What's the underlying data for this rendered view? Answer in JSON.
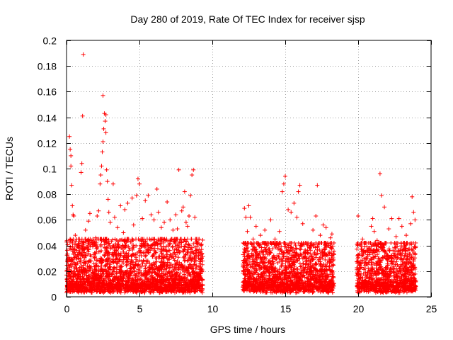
{
  "chart_data": {
    "type": "scatter",
    "title": "Day 280 of 2019, Rate Of TEC Index for receiver sjsp",
    "xlabel": "GPS time / hours",
    "ylabel": "ROTI / TECUs",
    "xlim": [
      0,
      25
    ],
    "ylim": [
      0,
      0.2
    ],
    "xticks": [
      0,
      5,
      10,
      15,
      20,
      25
    ],
    "xtick_labels": [
      "0",
      "5",
      "10",
      "15",
      "20",
      "25"
    ],
    "yticks": [
      0,
      0.02,
      0.04,
      0.06,
      0.08,
      0.1,
      0.12,
      0.14,
      0.16,
      0.18,
      0.2
    ],
    "ytick_labels": [
      "0",
      "0.02",
      "0.04",
      "0.06",
      "0.08",
      "0.1",
      "0.12",
      "0.14",
      "0.16",
      "0.18",
      "0.2"
    ],
    "grid": true,
    "marker": "+",
    "color": "#ff0000",
    "series": [
      {
        "name": "ROTI",
        "points": [
          [
            0.1,
            0.03
          ],
          [
            0.2,
            0.125
          ],
          [
            0.25,
            0.115
          ],
          [
            0.3,
            0.11
          ],
          [
            0.3,
            0.102
          ],
          [
            0.35,
            0.087
          ],
          [
            0.4,
            0.071
          ],
          [
            0.45,
            0.064
          ],
          [
            0.5,
            0.063
          ],
          [
            0.6,
            0.048
          ],
          [
            0.8,
            0.041
          ],
          [
            0.9,
            0.035
          ],
          [
            1.0,
            0.097
          ],
          [
            1.05,
            0.104
          ],
          [
            1.1,
            0.141
          ],
          [
            1.15,
            0.189
          ],
          [
            1.3,
            0.052
          ],
          [
            1.5,
            0.059
          ],
          [
            1.6,
            0.065
          ],
          [
            1.8,
            0.039
          ],
          [
            2.0,
            0.046
          ],
          [
            2.1,
            0.063
          ],
          [
            2.2,
            0.067
          ],
          [
            2.3,
            0.088
          ],
          [
            2.35,
            0.095
          ],
          [
            2.4,
            0.102
          ],
          [
            2.45,
            0.113
          ],
          [
            2.5,
            0.121
          ],
          [
            2.5,
            0.157
          ],
          [
            2.55,
            0.131
          ],
          [
            2.6,
            0.143
          ],
          [
            2.65,
            0.137
          ],
          [
            2.7,
            0.128
          ],
          [
            2.7,
            0.142
          ],
          [
            2.75,
            0.099
          ],
          [
            2.8,
            0.09
          ],
          [
            2.85,
            0.076
          ],
          [
            2.9,
            0.066
          ],
          [
            3.0,
            0.058
          ],
          [
            3.2,
            0.088
          ],
          [
            3.3,
            0.062
          ],
          [
            3.5,
            0.054
          ],
          [
            3.7,
            0.071
          ],
          [
            3.9,
            0.05
          ],
          [
            4.0,
            0.068
          ],
          [
            4.2,
            0.073
          ],
          [
            4.5,
            0.077
          ],
          [
            4.6,
            0.056
          ],
          [
            4.8,
            0.079
          ],
          [
            4.9,
            0.092
          ],
          [
            5.0,
            0.088
          ],
          [
            5.2,
            0.061
          ],
          [
            5.4,
            0.075
          ],
          [
            5.6,
            0.079
          ],
          [
            5.8,
            0.064
          ],
          [
            6.0,
            0.06
          ],
          [
            6.2,
            0.084
          ],
          [
            6.3,
            0.066
          ],
          [
            6.5,
            0.054
          ],
          [
            6.7,
            0.058
          ],
          [
            6.9,
            0.074
          ],
          [
            7.1,
            0.06
          ],
          [
            7.3,
            0.052
          ],
          [
            7.5,
            0.064
          ],
          [
            7.6,
            0.053
          ],
          [
            7.7,
            0.099
          ],
          [
            7.9,
            0.067
          ],
          [
            8.0,
            0.07
          ],
          [
            8.1,
            0.082
          ],
          [
            8.2,
            0.058
          ],
          [
            8.3,
            0.055
          ],
          [
            8.4,
            0.063
          ],
          [
            8.5,
            0.079
          ],
          [
            8.6,
            0.095
          ],
          [
            8.7,
            0.099
          ],
          [
            8.8,
            0.062
          ],
          [
            9.0,
            0.042
          ],
          [
            9.2,
            0.035
          ],
          [
            12.2,
            0.069
          ],
          [
            12.3,
            0.062
          ],
          [
            12.4,
            0.051
          ],
          [
            12.5,
            0.071
          ],
          [
            12.6,
            0.062
          ],
          [
            12.8,
            0.045
          ],
          [
            13.0,
            0.055
          ],
          [
            13.3,
            0.048
          ],
          [
            13.6,
            0.052
          ],
          [
            14.0,
            0.06
          ],
          [
            14.3,
            0.045
          ],
          [
            14.6,
            0.051
          ],
          [
            14.8,
            0.082
          ],
          [
            14.9,
            0.088
          ],
          [
            15.0,
            0.094
          ],
          [
            15.2,
            0.068
          ],
          [
            15.4,
            0.066
          ],
          [
            15.6,
            0.073
          ],
          [
            15.8,
            0.062
          ],
          [
            15.9,
            0.082
          ],
          [
            16.0,
            0.087
          ],
          [
            16.2,
            0.057
          ],
          [
            16.5,
            0.041
          ],
          [
            16.9,
            0.052
          ],
          [
            17.1,
            0.063
          ],
          [
            17.2,
            0.087
          ],
          [
            17.4,
            0.048
          ],
          [
            17.6,
            0.056
          ],
          [
            17.8,
            0.054
          ],
          [
            18.1,
            0.046
          ],
          [
            18.2,
            0.049
          ],
          [
            20.0,
            0.063
          ],
          [
            20.3,
            0.045
          ],
          [
            20.6,
            0.039
          ],
          [
            20.9,
            0.055
          ],
          [
            21.0,
            0.061
          ],
          [
            21.1,
            0.051
          ],
          [
            21.3,
            0.044
          ],
          [
            21.5,
            0.096
          ],
          [
            21.6,
            0.079
          ],
          [
            21.8,
            0.07
          ],
          [
            22.1,
            0.053
          ],
          [
            22.3,
            0.061
          ],
          [
            22.6,
            0.047
          ],
          [
            22.8,
            0.061
          ],
          [
            23.0,
            0.055
          ],
          [
            23.3,
            0.048
          ],
          [
            23.6,
            0.057
          ],
          [
            23.7,
            0.078
          ],
          [
            23.8,
            0.066
          ],
          [
            23.9,
            0.06
          ]
        ],
        "dense_bands": [
          {
            "x_start": 0.0,
            "x_end": 9.35,
            "y_min": 0.003,
            "y_max": 0.045
          },
          {
            "x_start": 12.1,
            "x_end": 18.35,
            "y_min": 0.003,
            "y_max": 0.042
          },
          {
            "x_start": 19.9,
            "x_end": 23.95,
            "y_min": 0.003,
            "y_max": 0.042
          }
        ]
      }
    ]
  }
}
